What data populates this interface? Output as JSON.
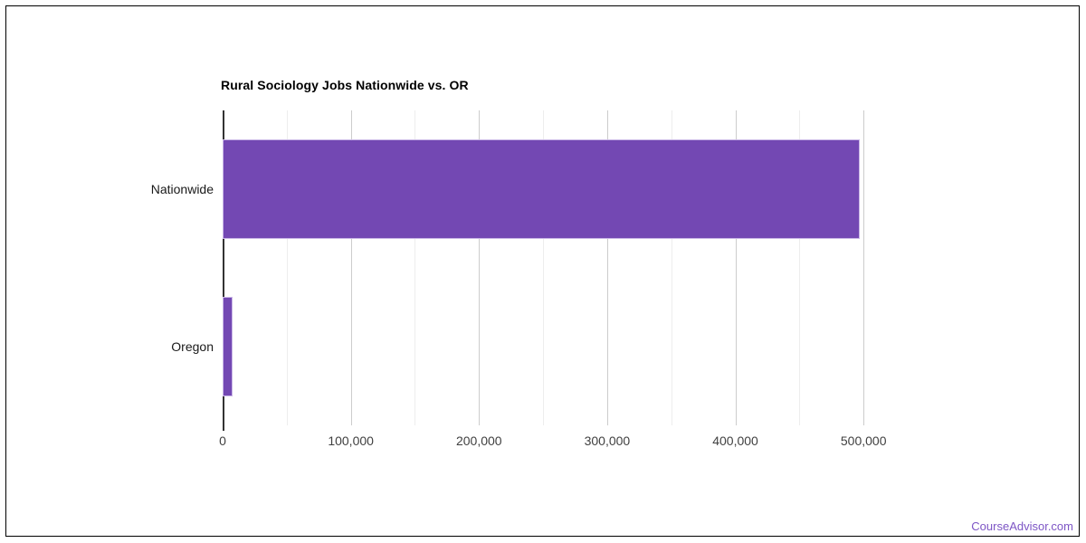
{
  "frame": {
    "border_color": "#000000",
    "background_color": "#ffffff"
  },
  "chart_data": {
    "type": "bar",
    "orientation": "horizontal",
    "title": "Rural Sociology Jobs Nationwide vs. OR",
    "categories": [
      "Nationwide",
      "Oregon"
    ],
    "values": [
      497000,
      8000
    ],
    "xlabel": "",
    "ylabel": "",
    "xlim": [
      0,
      550000
    ],
    "x_tick_interval": 100000,
    "x_minor_interval": 50000,
    "x_tick_labels": [
      "0",
      "100,000",
      "200,000",
      "300,000",
      "400,000",
      "500,000"
    ],
    "grid": true,
    "legend": "none",
    "bar_color": "#7348b3",
    "bar_border_color": "#c9b6e6",
    "axis_line_color": "#333333",
    "major_grid_color": "#cccccc",
    "minor_grid_color": "#ededed",
    "title_color": "#000000",
    "tick_label_color": "#404040",
    "category_label_color": "#1a1a1a"
  },
  "footer": {
    "watermark": "CourseAdvisor.com",
    "watermark_color": "#7d55c5"
  }
}
